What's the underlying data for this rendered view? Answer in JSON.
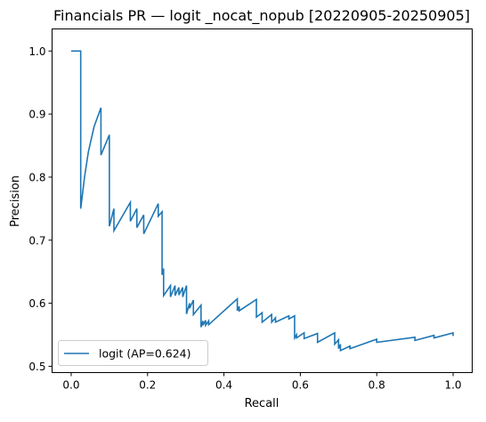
{
  "chart_data": {
    "type": "line",
    "title": "Financials PR — logit _nocat_nopub [20220905-20250905]",
    "xlabel": "Recall",
    "ylabel": "Precision",
    "xlim": [
      -0.05,
      1.05
    ],
    "ylim": [
      0.49,
      1.035
    ],
    "xticks": [
      0.0,
      0.2,
      0.4,
      0.6,
      0.8,
      1.0
    ],
    "xtick_labels": [
      "0.0",
      "0.2",
      "0.4",
      "0.6",
      "0.8",
      "1.0"
    ],
    "yticks": [
      0.5,
      0.6,
      0.7,
      0.8,
      0.9,
      1.0
    ],
    "ytick_labels": [
      "0.5",
      "0.6",
      "0.7",
      "0.8",
      "0.9",
      "1.0"
    ],
    "grid": false,
    "legend": {
      "position": "lower-left"
    },
    "series": [
      {
        "name": "logit (AP=0.624)",
        "color": "#1f77b4",
        "points": [
          [
            0.0,
            1.0
          ],
          [
            0.025,
            1.0
          ],
          [
            0.025,
            0.75
          ],
          [
            0.035,
            0.8
          ],
          [
            0.045,
            0.84
          ],
          [
            0.06,
            0.88
          ],
          [
            0.078,
            0.91
          ],
          [
            0.078,
            0.835
          ],
          [
            0.1,
            0.867
          ],
          [
            0.1,
            0.722
          ],
          [
            0.112,
            0.75
          ],
          [
            0.112,
            0.715
          ],
          [
            0.155,
            0.76
          ],
          [
            0.155,
            0.73
          ],
          [
            0.172,
            0.75
          ],
          [
            0.172,
            0.72
          ],
          [
            0.19,
            0.74
          ],
          [
            0.19,
            0.71
          ],
          [
            0.228,
            0.758
          ],
          [
            0.228,
            0.738
          ],
          [
            0.238,
            0.745
          ],
          [
            0.238,
            0.645
          ],
          [
            0.242,
            0.655
          ],
          [
            0.242,
            0.612
          ],
          [
            0.26,
            0.628
          ],
          [
            0.26,
            0.61
          ],
          [
            0.272,
            0.628
          ],
          [
            0.272,
            0.612
          ],
          [
            0.282,
            0.625
          ],
          [
            0.282,
            0.613
          ],
          [
            0.292,
            0.625
          ],
          [
            0.292,
            0.61
          ],
          [
            0.302,
            0.628
          ],
          [
            0.302,
            0.583
          ],
          [
            0.31,
            0.6
          ],
          [
            0.31,
            0.592
          ],
          [
            0.32,
            0.605
          ],
          [
            0.32,
            0.582
          ],
          [
            0.34,
            0.597
          ],
          [
            0.34,
            0.562
          ],
          [
            0.345,
            0.572
          ],
          [
            0.345,
            0.565
          ],
          [
            0.352,
            0.573
          ],
          [
            0.352,
            0.565
          ],
          [
            0.36,
            0.572
          ],
          [
            0.36,
            0.566
          ],
          [
            0.435,
            0.607
          ],
          [
            0.435,
            0.588
          ],
          [
            0.44,
            0.595
          ],
          [
            0.44,
            0.588
          ],
          [
            0.485,
            0.606
          ],
          [
            0.485,
            0.578
          ],
          [
            0.5,
            0.585
          ],
          [
            0.5,
            0.57
          ],
          [
            0.525,
            0.582
          ],
          [
            0.525,
            0.57
          ],
          [
            0.535,
            0.577
          ],
          [
            0.535,
            0.57
          ],
          [
            0.57,
            0.58
          ],
          [
            0.57,
            0.575
          ],
          [
            0.585,
            0.58
          ],
          [
            0.585,
            0.545
          ],
          [
            0.59,
            0.55
          ],
          [
            0.59,
            0.545
          ],
          [
            0.61,
            0.553
          ],
          [
            0.61,
            0.544
          ],
          [
            0.645,
            0.552
          ],
          [
            0.645,
            0.538
          ],
          [
            0.69,
            0.553
          ],
          [
            0.69,
            0.535
          ],
          [
            0.7,
            0.542
          ],
          [
            0.7,
            0.528
          ],
          [
            0.705,
            0.535
          ],
          [
            0.705,
            0.525
          ],
          [
            0.73,
            0.532
          ],
          [
            0.73,
            0.528
          ],
          [
            0.8,
            0.543
          ],
          [
            0.8,
            0.538
          ],
          [
            0.9,
            0.546
          ],
          [
            0.9,
            0.541
          ],
          [
            0.95,
            0.549
          ],
          [
            0.95,
            0.545
          ],
          [
            1.0,
            0.553
          ],
          [
            1.0,
            0.548
          ]
        ]
      }
    ]
  }
}
